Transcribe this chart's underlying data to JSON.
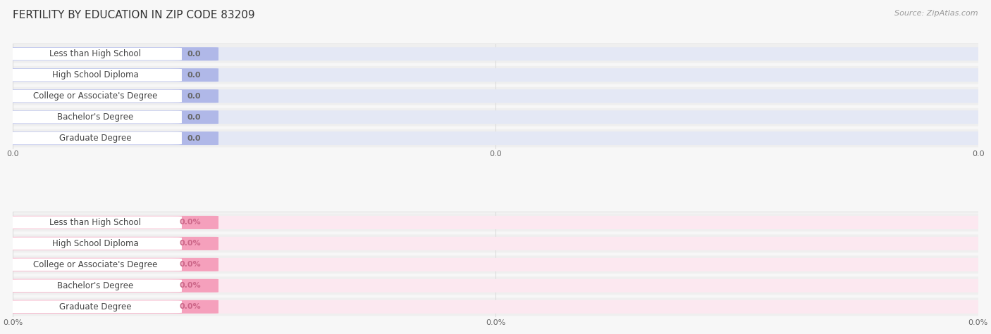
{
  "title": "FERTILITY BY EDUCATION IN ZIP CODE 83209",
  "source": "Source: ZipAtlas.com",
  "categories": [
    "Less than High School",
    "High School Diploma",
    "College or Associate's Degree",
    "Bachelor's Degree",
    "Graduate Degree"
  ],
  "top_values": [
    0.0,
    0.0,
    0.0,
    0.0,
    0.0
  ],
  "bottom_values": [
    0.0,
    0.0,
    0.0,
    0.0,
    0.0
  ],
  "top_bar_color": "#b0b8e8",
  "top_bar_bg": "#e4e8f5",
  "top_dot_color": "#8892d0",
  "bottom_bar_color": "#f5a0bc",
  "bottom_bar_bg": "#fce8f0",
  "bottom_dot_color": "#ee7aa0",
  "top_tick_labels": [
    "0.0",
    "0.0",
    "0.0"
  ],
  "bottom_tick_labels": [
    "0.0%",
    "0.0%",
    "0.0%"
  ],
  "background_color": "#f7f7f7",
  "grid_color": "#d8d8d8",
  "title_color": "#333333",
  "label_color": "#444444",
  "value_color_top": "#666666",
  "value_color_bottom": "#cc6688",
  "title_fontsize": 11,
  "label_fontsize": 8.5,
  "value_fontsize": 8,
  "tick_fontsize": 8,
  "source_fontsize": 8
}
